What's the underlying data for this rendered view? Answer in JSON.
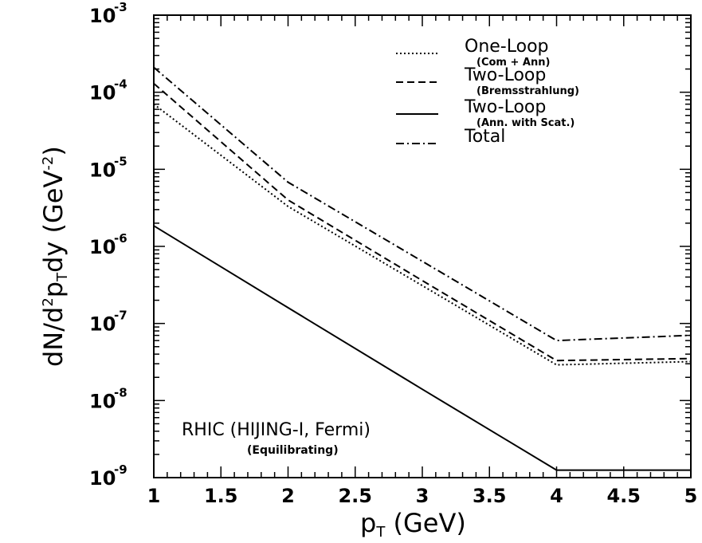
{
  "chart_data": {
    "type": "line",
    "x_label": {
      "main": "p",
      "sub": "T",
      "rest": " (GeV)"
    },
    "y_label": {
      "a": "dN/d",
      "sup": "2",
      "b": "p",
      "sub": "T",
      "c": "dy (GeV",
      "sup2": "-2",
      "d": ")"
    },
    "xlim": [
      1,
      5
    ],
    "ylim": [
      1e-09,
      0.001
    ],
    "y_scale": "log",
    "x_ticks": [
      "1",
      "1.5",
      "2",
      "2.5",
      "3",
      "3.5",
      "4",
      "4.5",
      "5"
    ],
    "y_ticks": [
      {
        "base": "10",
        "exp": "-9"
      },
      {
        "base": "10",
        "exp": "-8"
      },
      {
        "base": "10",
        "exp": "-7"
      },
      {
        "base": "10",
        "exp": "-6"
      },
      {
        "base": "10",
        "exp": "-5"
      },
      {
        "base": "10",
        "exp": "-4"
      },
      {
        "base": "10",
        "exp": "-3"
      }
    ],
    "series": [
      {
        "name": "One-Loop",
        "note": "(Com + Ann)",
        "style": "dotted",
        "x": [
          1,
          2,
          3,
          4,
          5
        ],
        "y": [
          7e-05,
          3.3e-06,
          3.1e-07,
          2.9e-08,
          3.2e-08
        ]
      },
      {
        "name": "Two-Loop",
        "note": "(Bremsstrahlung)",
        "style": "dashed",
        "x": [
          1,
          2,
          3,
          4,
          5
        ],
        "y": [
          0.00013,
          4e-06,
          3.6e-07,
          3.3e-08,
          3.5e-08
        ]
      },
      {
        "name": "Two-Loop",
        "note": "(Ann. with Scat.)",
        "style": "solid",
        "x": [
          1,
          2,
          3,
          4,
          5
        ],
        "y": [
          1.85e-06,
          1.6e-07,
          1.4e-08,
          1.25e-09,
          1.25e-09
        ]
      },
      {
        "name": "Total",
        "note": "",
        "style": "dashdot",
        "x": [
          1,
          2,
          3,
          4,
          5
        ],
        "y": [
          0.00021,
          6.8e-06,
          6.4e-07,
          6e-08,
          7e-08
        ]
      }
    ],
    "legend_position": "top-right",
    "annotation": {
      "main": "RHIC (HIJING-I, Fermi)",
      "sub": "(Equilibrating)"
    }
  }
}
